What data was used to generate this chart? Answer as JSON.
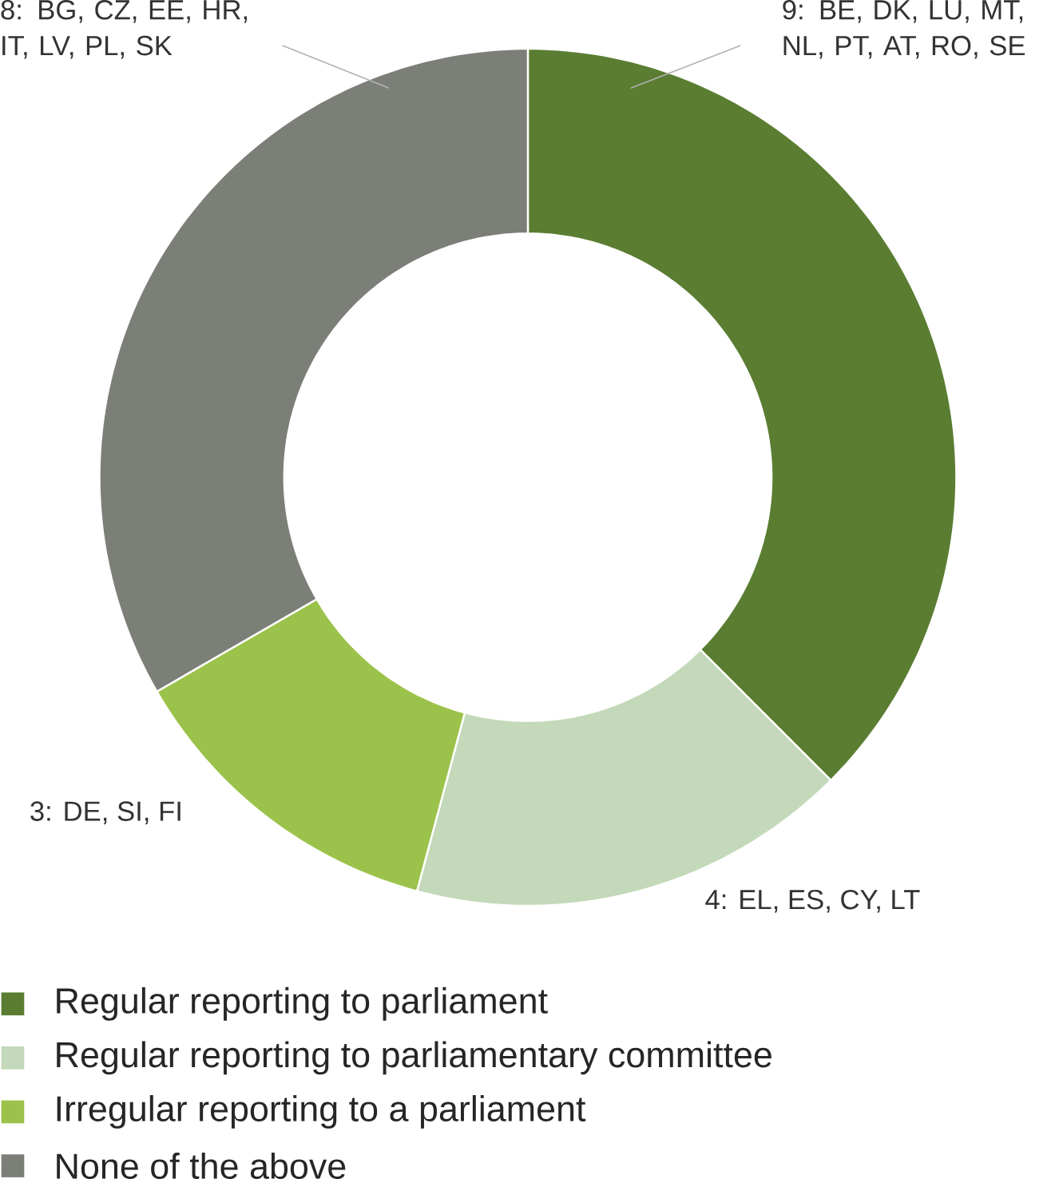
{
  "chart_data": {
    "type": "donut",
    "categories": [
      "Regular reporting to parliament",
      "Regular reporting to parliamentary committee",
      "Irregular reporting to a parliament",
      "None of the above"
    ],
    "values": [
      9,
      4,
      3,
      8
    ],
    "colors": [
      "#5a7d32",
      "#c3d9b9",
      "#9bc24a",
      "#7b7f78"
    ],
    "value_labels": [
      "9: BE, DK, LU, MT, NL, PT, AT, RO, SE",
      "4: EL, ES, CY, LT",
      "3: DE, SI, FI",
      "8: BG, CZ, EE, HR, IT, LV, PL, SK"
    ],
    "legend": "bottom"
  }
}
